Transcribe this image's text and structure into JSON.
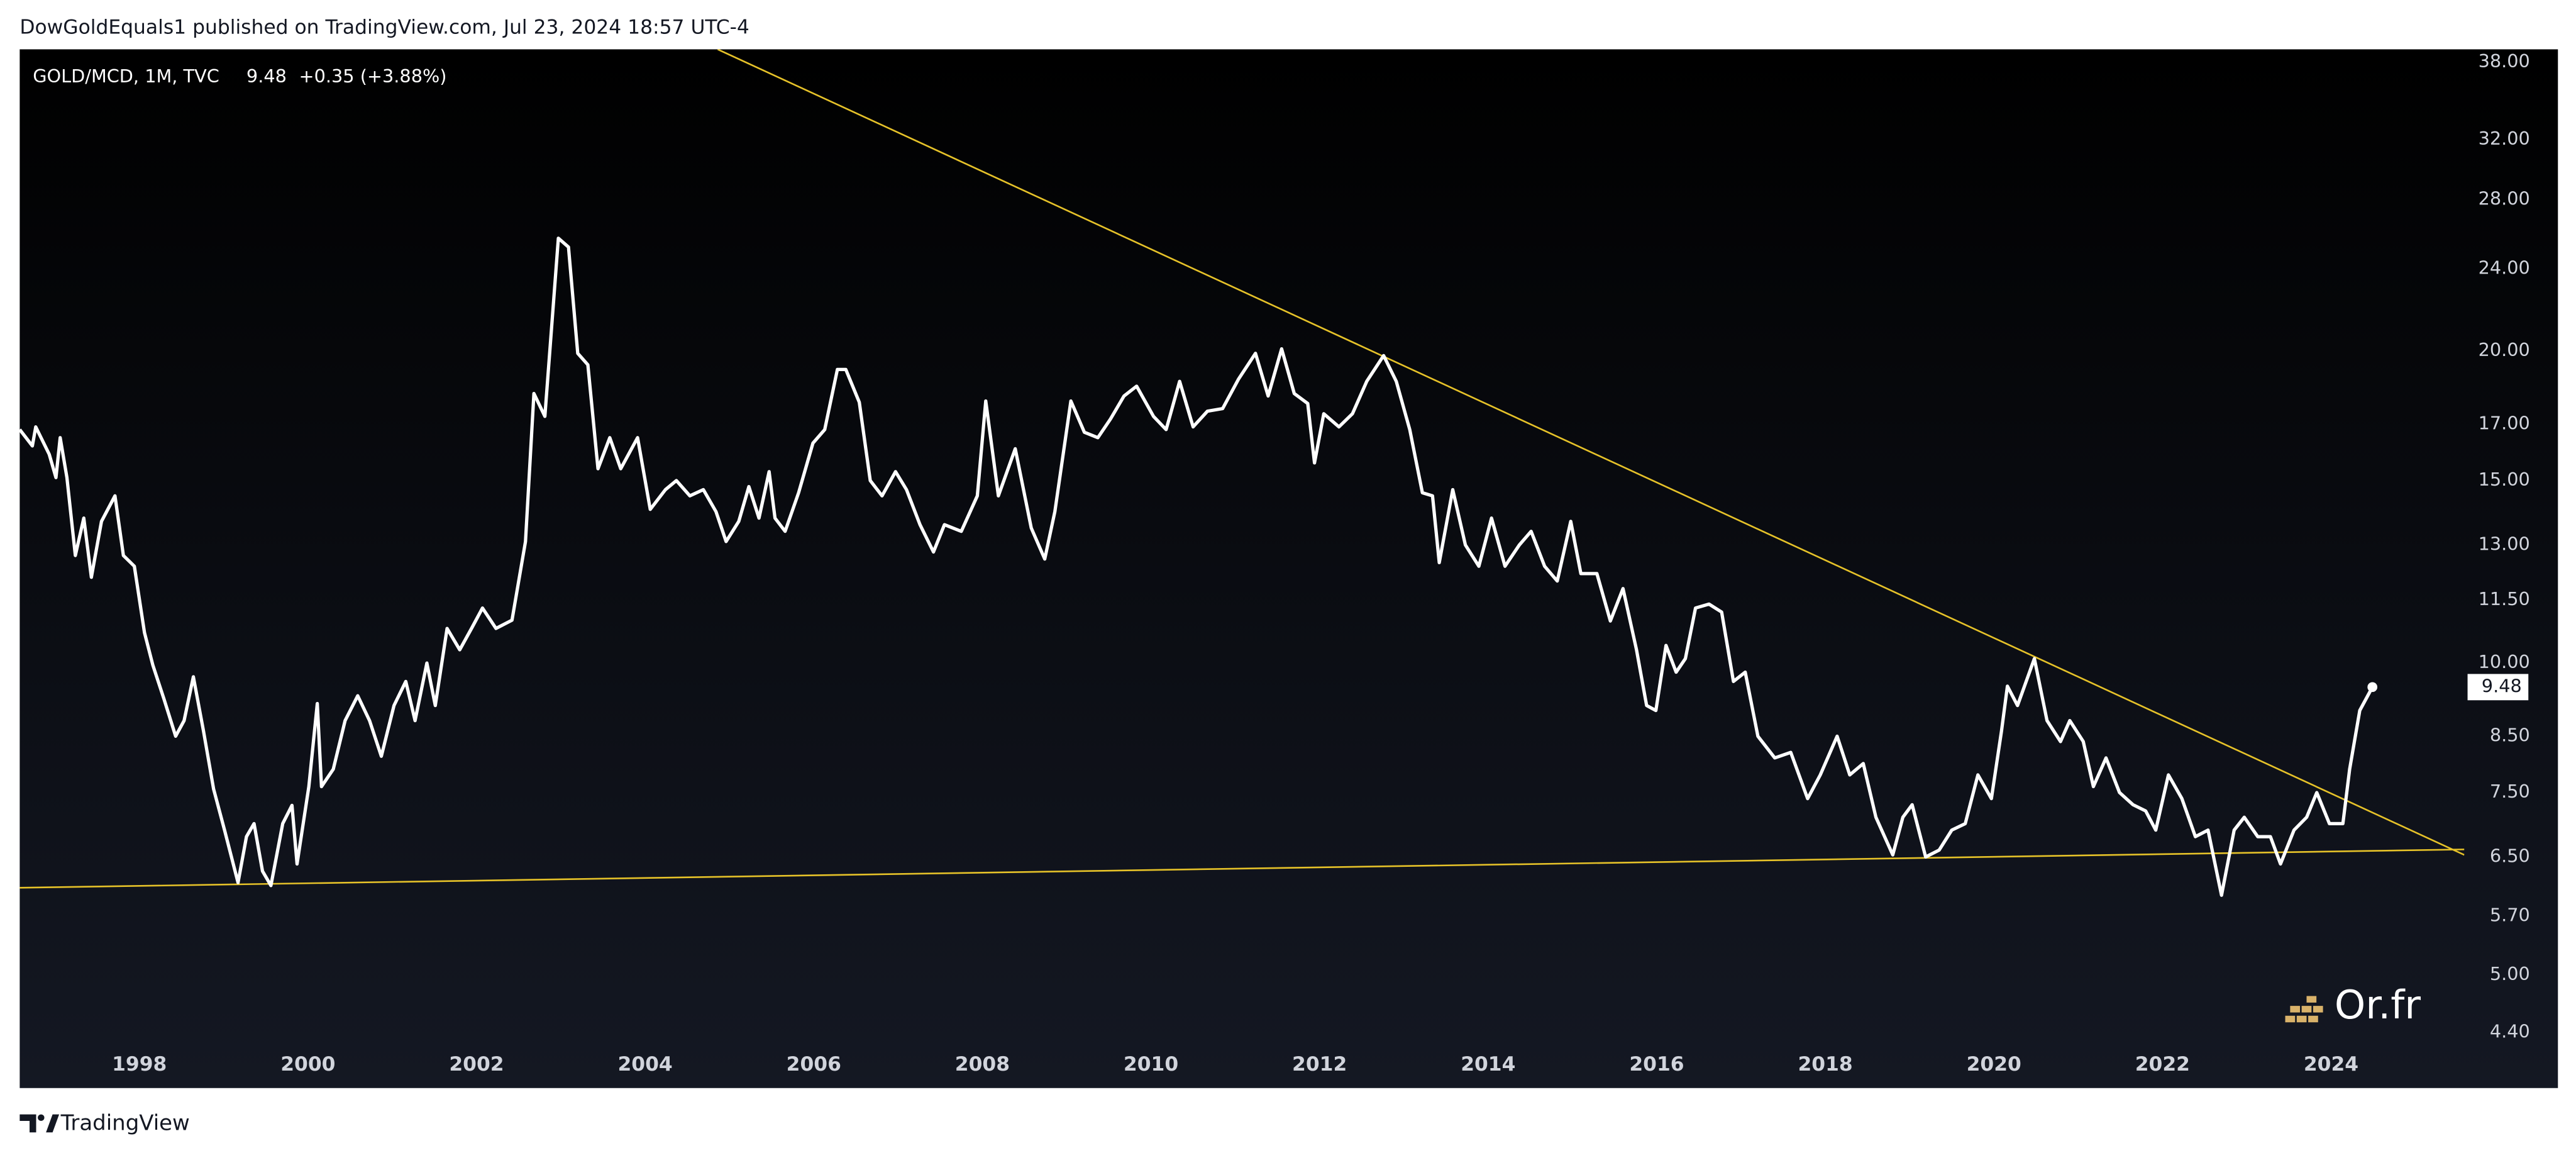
{
  "header": {
    "byline": "DowGoldEquals1 published on TradingView.com, Jul 23, 2024 18:57 UTC-4"
  },
  "chart_data": {
    "type": "line",
    "log_scale": true,
    "grid": false,
    "change": "+0.35 (+3.88%)",
    "x": [
      1996.58,
      1996.73,
      1996.77,
      1996.93,
      1997.01,
      1997.06,
      1997.14,
      1997.24,
      1997.34,
      1997.43,
      1997.55,
      1997.71,
      1997.81,
      1997.94,
      1998.06,
      1998.16,
      1998.29,
      1998.43,
      1998.53,
      1998.64,
      1998.76,
      1998.88,
      1999.01,
      1999.17,
      1999.27,
      1999.36,
      1999.46,
      1999.56,
      1999.7,
      1999.81,
      1999.87,
      2000.01,
      2000.11,
      2000.16,
      2000.3,
      2000.44,
      2000.59,
      2000.73,
      2000.87,
      2001.02,
      2001.16,
      2001.27,
      2001.41,
      2001.51,
      2001.65,
      2001.8,
      2001.94,
      2002.07,
      2002.23,
      2002.42,
      2002.58,
      2002.68,
      2002.81,
      2002.97,
      2003.09,
      2003.2,
      2003.32,
      2003.44,
      2003.58,
      2003.71,
      2003.91,
      2004.06,
      2004.24,
      2004.37,
      2004.53,
      2004.69,
      2004.84,
      2004.96,
      2005.11,
      2005.23,
      2005.35,
      2005.47,
      2005.54,
      2005.66,
      2005.82,
      2005.99,
      2006.13,
      2006.28,
      2006.38,
      2006.54,
      2006.67,
      2006.81,
      2006.97,
      2007.1,
      2007.26,
      2007.42,
      2007.55,
      2007.75,
      2007.94,
      2008.04,
      2008.19,
      2008.39,
      2008.58,
      2008.74,
      2008.86,
      2009.05,
      2009.21,
      2009.37,
      2009.52,
      2009.68,
      2009.83,
      2010.03,
      2010.18,
      2010.34,
      2010.5,
      2010.67,
      2010.85,
      2011.04,
      2011.24,
      2011.39,
      2011.55,
      2011.7,
      2011.86,
      2011.94,
      2012.05,
      2012.23,
      2012.39,
      2012.56,
      2012.76,
      2012.91,
      2013.07,
      2013.22,
      2013.34,
      2013.42,
      2013.58,
      2013.73,
      2013.89,
      2014.04,
      2014.2,
      2014.37,
      2014.51,
      2014.67,
      2014.82,
      2014.98,
      2015.1,
      2015.29,
      2015.45,
      2015.6,
      2015.76,
      2015.88,
      2015.99,
      2016.11,
      2016.23,
      2016.34,
      2016.46,
      2016.62,
      2016.77,
      2016.91,
      2017.05,
      2017.2,
      2017.4,
      2017.59,
      2017.79,
      2017.94,
      2018.14,
      2018.29,
      2018.45,
      2018.6,
      2018.8,
      2018.92,
      2019.03,
      2019.19,
      2019.35,
      2019.5,
      2019.66,
      2019.81,
      2019.97,
      2020.09,
      2020.16,
      2020.28,
      2020.48,
      2020.63,
      2020.79,
      2020.9,
      2021.06,
      2021.18,
      2021.33,
      2021.49,
      2021.65,
      2021.8,
      2021.92,
      2022.07,
      2022.23,
      2022.39,
      2022.54,
      2022.7,
      2022.85,
      2022.97,
      2023.13,
      2023.28,
      2023.4,
      2023.56,
      2023.71,
      2023.83,
      2023.98,
      2024.14,
      2024.22,
      2024.34,
      2024.49
    ],
    "series": [
      {
        "name": "GOLD/MCD, 1M, TVC",
        "color": "#ffffff",
        "values": [
          16.8,
          16.2,
          16.9,
          15.9,
          15.1,
          16.5,
          15.1,
          12.7,
          13.8,
          12.1,
          13.7,
          14.5,
          12.7,
          12.4,
          10.7,
          9.95,
          9.24,
          8.5,
          8.8,
          9.7,
          8.6,
          7.56,
          6.9,
          6.14,
          6.8,
          7.0,
          6.3,
          6.1,
          7.0,
          7.29,
          6.4,
          7.6,
          9.14,
          7.6,
          7.9,
          8.8,
          9.3,
          8.8,
          8.13,
          9.1,
          9.6,
          8.8,
          10.0,
          9.1,
          10.8,
          10.3,
          10.8,
          11.3,
          10.8,
          11.0,
          13.1,
          18.2,
          17.3,
          25.7,
          25.2,
          19.9,
          19.4,
          15.4,
          16.5,
          15.4,
          16.5,
          14.07,
          14.7,
          15.0,
          14.5,
          14.7,
          14.0,
          13.1,
          13.7,
          14.8,
          13.8,
          15.3,
          13.8,
          13.4,
          14.6,
          16.3,
          16.8,
          19.2,
          19.2,
          17.85,
          15.0,
          14.5,
          15.3,
          14.7,
          13.6,
          12.8,
          13.6,
          13.4,
          14.5,
          17.9,
          14.5,
          16.1,
          13.5,
          12.6,
          14.0,
          17.9,
          16.7,
          16.5,
          17.2,
          18.1,
          18.5,
          17.3,
          16.8,
          18.7,
          16.9,
          17.5,
          17.6,
          18.8,
          19.9,
          18.1,
          20.1,
          18.2,
          17.8,
          15.6,
          17.4,
          16.9,
          17.4,
          18.7,
          19.8,
          18.7,
          16.8,
          14.6,
          14.5,
          12.5,
          14.7,
          13.0,
          12.4,
          13.8,
          12.4,
          13.0,
          13.4,
          12.4,
          12.0,
          13.7,
          12.2,
          12.2,
          10.98,
          11.8,
          10.3,
          9.1,
          9.0,
          10.4,
          9.8,
          10.1,
          11.3,
          11.4,
          11.2,
          9.6,
          9.8,
          8.5,
          8.1,
          8.2,
          7.4,
          7.8,
          8.5,
          7.8,
          8.0,
          7.1,
          6.53,
          7.1,
          7.3,
          6.5,
          6.6,
          6.9,
          7.0,
          7.8,
          7.4,
          8.6,
          9.5,
          9.1,
          10.1,
          8.8,
          8.4,
          8.8,
          8.4,
          7.6,
          8.1,
          7.5,
          7.3,
          7.2,
          6.9,
          7.8,
          7.4,
          6.8,
          6.9,
          5.97,
          6.9,
          7.1,
          6.8,
          6.8,
          6.4,
          6.9,
          7.1,
          7.5,
          7.0,
          7.0,
          7.9,
          9.0,
          9.48
        ]
      }
    ],
    "trendlines": [
      {
        "color": "#e6c229",
        "x": [
          2004.86,
          2025.58
        ],
        "values": [
          39.1,
          6.53
        ]
      },
      {
        "color": "#e6c229",
        "x": [
          1996.58,
          2025.58
        ],
        "values": [
          6.07,
          6.61
        ]
      }
    ],
    "xlim": [
      1996.58,
      2025.58
    ],
    "xticks": [
      1998,
      2000,
      2002,
      2004,
      2006,
      2008,
      2010,
      2012,
      2014,
      2016,
      2018,
      2020,
      2022,
      2024
    ],
    "ylim": [
      3.89,
      39.1
    ],
    "yticks": [
      {
        "value": 4.4,
        "label": "4.40"
      },
      {
        "value": 5,
        "label": "5.00"
      },
      {
        "value": 5.7,
        "label": "5.70"
      },
      {
        "value": 6.5,
        "label": "6.50"
      },
      {
        "value": 7.5,
        "label": "7.50"
      },
      {
        "value": 8.5,
        "label": "8.50"
      },
      {
        "value": 10,
        "label": "10.00"
      },
      {
        "value": 11.5,
        "label": "11.50"
      },
      {
        "value": 13,
        "label": "13.00"
      },
      {
        "value": 15,
        "label": "15.00"
      },
      {
        "value": 17,
        "label": "17.00"
      },
      {
        "value": 20,
        "label": "20.00"
      },
      {
        "value": 24,
        "label": "24.00"
      },
      {
        "value": 28,
        "label": "28.00"
      },
      {
        "value": 32,
        "label": "32.00"
      },
      {
        "value": 38,
        "label": "38.00"
      }
    ]
  },
  "watermark": "Or.fr",
  "footer": "TradingView"
}
